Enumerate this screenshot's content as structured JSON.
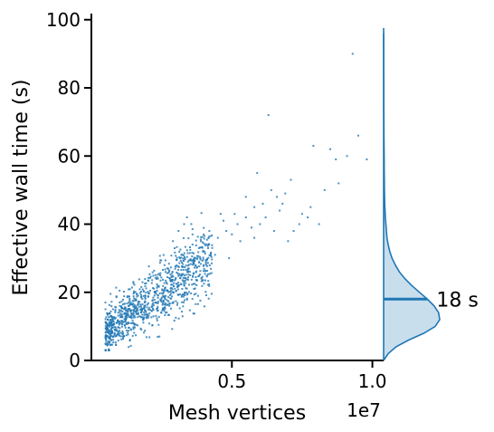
{
  "chart_data": {
    "type": "scatter",
    "xlabel": "Mesh vertices",
    "ylabel": "Effective wall time (s)",
    "x_offset_label": "1e7",
    "xlim": [
      0,
      1.04
    ],
    "ylim": [
      0,
      101
    ],
    "xticks": [
      {
        "value": 0.5,
        "label": "0.5"
      },
      {
        "value": 1.0,
        "label": "1.0"
      }
    ],
    "yticks": [
      {
        "value": 0,
        "label": "0"
      },
      {
        "value": 20,
        "label": "20"
      },
      {
        "value": 40,
        "label": "40"
      },
      {
        "value": 60,
        "label": "60"
      },
      {
        "value": 80,
        "label": "80"
      },
      {
        "value": 100,
        "label": "100"
      }
    ],
    "grid": false,
    "point_color": "#1f77b4",
    "points": [
      [
        0.26,
        28
      ],
      [
        0.29,
        35
      ],
      [
        0.31,
        38
      ],
      [
        0.33,
        40
      ],
      [
        0.36,
        34
      ],
      [
        0.39,
        35
      ],
      [
        0.42,
        38
      ],
      [
        0.46,
        43
      ],
      [
        0.48,
        38
      ],
      [
        0.52,
        40
      ],
      [
        0.55,
        42
      ],
      [
        0.58,
        45
      ],
      [
        0.61,
        46
      ],
      [
        0.64,
        50
      ],
      [
        0.66,
        48
      ],
      [
        0.69,
        49
      ],
      [
        0.72,
        38
      ],
      [
        0.75,
        43
      ],
      [
        0.78,
        45
      ],
      [
        0.83,
        50
      ],
      [
        0.87,
        59
      ],
      [
        0.91,
        60
      ],
      [
        0.95,
        66
      ],
      [
        0.93,
        90
      ],
      [
        0.63,
        72
      ],
      [
        0.79,
        63
      ],
      [
        0.85,
        62
      ],
      [
        0.98,
        59
      ],
      [
        0.59,
        55
      ],
      [
        0.71,
        53
      ],
      [
        0.67,
        44
      ],
      [
        0.74,
        40
      ],
      [
        0.53,
        35
      ],
      [
        0.57,
        39
      ],
      [
        0.44,
        31
      ],
      [
        0.34,
        42
      ],
      [
        0.4,
        28
      ],
      [
        0.47,
        41
      ],
      [
        0.5,
        37
      ],
      [
        0.62,
        42
      ],
      [
        0.7,
        35
      ],
      [
        0.81,
        40
      ],
      [
        0.36,
        37
      ],
      [
        0.28,
        24
      ],
      [
        0.43,
        33
      ],
      [
        0.49,
        30
      ],
      [
        0.55,
        48
      ],
      [
        0.65,
        38
      ],
      [
        0.6,
        40
      ],
      [
        0.37,
        30
      ],
      [
        0.45,
        36
      ],
      [
        0.68,
        46
      ],
      [
        0.77,
        42
      ],
      [
        0.88,
        52
      ],
      [
        0.32,
        31
      ],
      [
        0.51,
        43
      ],
      [
        0.58,
        36
      ]
    ],
    "cloud": {
      "x_min": 0.05,
      "x_max": 0.43,
      "slope": 60,
      "intercept": 5,
      "spread": 3.8,
      "count": 1000
    },
    "marginal": {
      "type": "kde",
      "median": 18,
      "median_label": "18 s",
      "density": [
        [
          0,
          0.0
        ],
        [
          2,
          0.08
        ],
        [
          4,
          0.22
        ],
        [
          6,
          0.45
        ],
        [
          8,
          0.72
        ],
        [
          10,
          0.92
        ],
        [
          12,
          1.0
        ],
        [
          14,
          0.98
        ],
        [
          16,
          0.9
        ],
        [
          18,
          0.78
        ],
        [
          20,
          0.64
        ],
        [
          22,
          0.5
        ],
        [
          24,
          0.38
        ],
        [
          26,
          0.28
        ],
        [
          28,
          0.21
        ],
        [
          30,
          0.15
        ],
        [
          32,
          0.11
        ],
        [
          34,
          0.08
        ],
        [
          36,
          0.06
        ],
        [
          38,
          0.05
        ],
        [
          40,
          0.04
        ],
        [
          42,
          0.03
        ],
        [
          44,
          0.025
        ],
        [
          46,
          0.02
        ],
        [
          50,
          0.015
        ],
        [
          55,
          0.012
        ],
        [
          60,
          0.01
        ],
        [
          65,
          0.007
        ],
        [
          70,
          0.005
        ],
        [
          75,
          0.004
        ],
        [
          80,
          0.003
        ],
        [
          85,
          0.002
        ],
        [
          90,
          0.001
        ],
        [
          96,
          0.0
        ]
      ]
    }
  }
}
